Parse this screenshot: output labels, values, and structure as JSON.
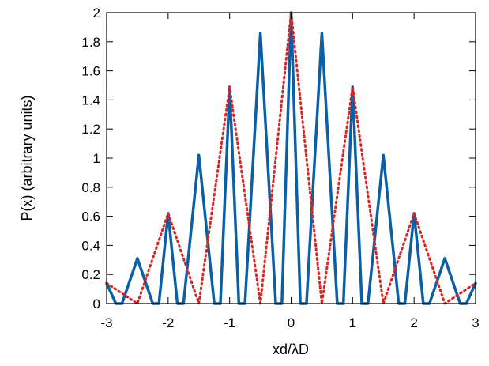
{
  "chart_data": {
    "type": "line",
    "title": "",
    "xlabel": "xd/λD",
    "ylabel": "P(x) (arbitrary units)",
    "xlim": [
      -3,
      3
    ],
    "ylim": [
      0,
      2
    ],
    "grid": false,
    "legend": "none",
    "x_ticks": [
      -3,
      -2,
      -1,
      0,
      1,
      2,
      3
    ],
    "x_tick_labels": [
      "-3",
      "-2",
      "-1",
      "0",
      "1",
      "2",
      "3"
    ],
    "y_ticks": [
      0,
      0.2,
      0.4,
      0.6,
      0.8,
      1,
      1.2,
      1.4,
      1.6,
      1.8,
      2
    ],
    "y_tick_labels": [
      "0",
      "0.2",
      "0.4",
      "0.6",
      "0.8",
      "1",
      "1.2",
      "1.4",
      "1.6",
      "1.8",
      "2"
    ],
    "series": [
      {
        "style": "solid",
        "color": "#0a5fa6",
        "x": [
          -3,
          -2.85,
          -2.75,
          -2.5,
          -2.25,
          -2.15,
          -2.0,
          -1.85,
          -1.75,
          -1.5,
          -1.25,
          -1.15,
          -1.0,
          -0.85,
          -0.75,
          -0.5,
          -0.25,
          -0.15,
          0,
          0.15,
          0.25,
          0.5,
          0.75,
          0.85,
          1.0,
          1.15,
          1.25,
          1.5,
          1.75,
          1.85,
          2.0,
          2.15,
          2.25,
          2.5,
          2.75,
          2.85,
          3
        ],
        "values": [
          0.14,
          0.0,
          0.0,
          0.31,
          0.0,
          0.0,
          0.62,
          0.0,
          0.0,
          1.02,
          0.0,
          0.0,
          1.49,
          0.0,
          0.0,
          1.86,
          0.0,
          0.0,
          2.0,
          0.0,
          0.0,
          1.86,
          0.0,
          0.0,
          1.49,
          0.0,
          0.0,
          1.02,
          0.0,
          0.0,
          0.62,
          0.0,
          0.0,
          0.31,
          0.0,
          0.0,
          0.14
        ]
      },
      {
        "style": "dotted",
        "color": "#d62728",
        "x": [
          -3,
          -2.5,
          -2.0,
          -1.5,
          -1.0,
          -0.5,
          0,
          0.5,
          1.0,
          1.5,
          2.0,
          2.5,
          3
        ],
        "values": [
          0.14,
          0.0,
          0.62,
          0.0,
          1.49,
          0.0,
          2.0,
          0.0,
          1.49,
          0.0,
          0.62,
          0.0,
          0.14
        ]
      }
    ]
  }
}
